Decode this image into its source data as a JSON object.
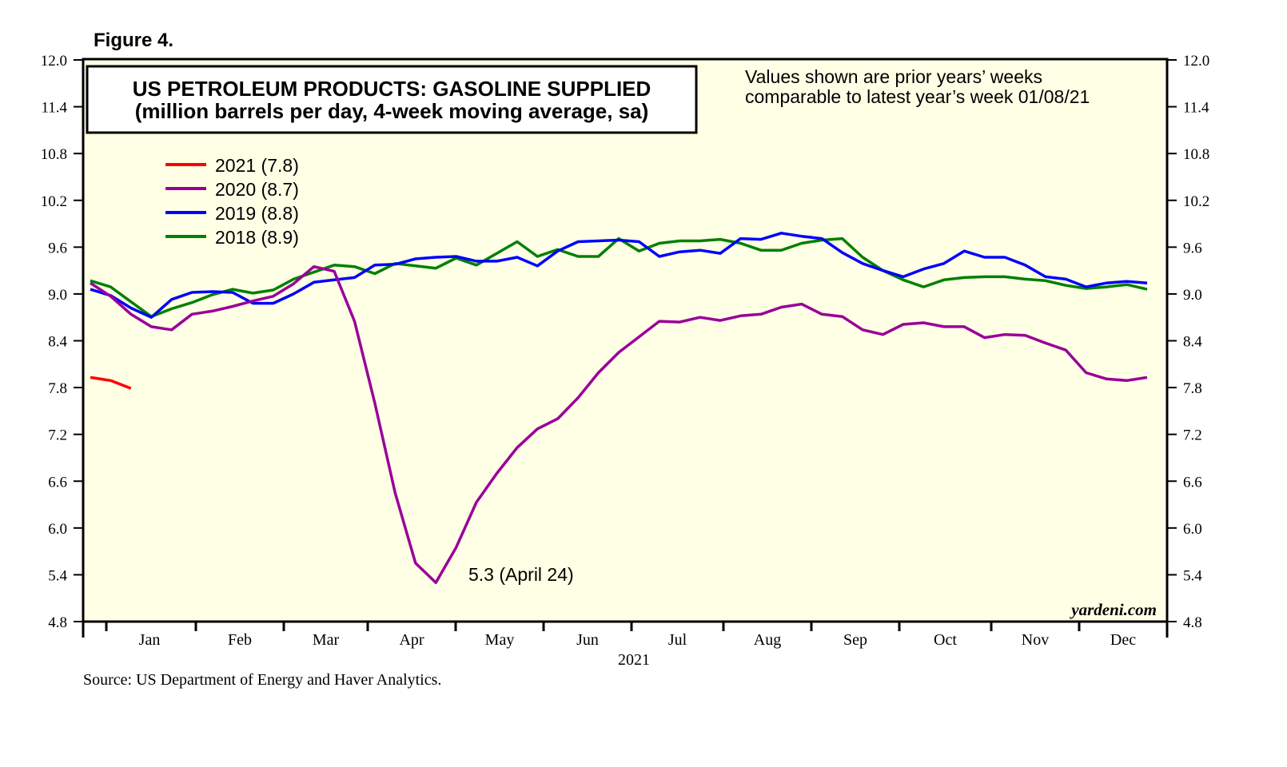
{
  "figure_label": "Figure 4.",
  "chart_data": {
    "type": "line",
    "title": "US PETROLEUM PRODUCTS: GASOLINE SUPPLIED",
    "subtitle": "(million barrels per day, 4-week moving average, sa)",
    "note_line1": "Values shown are prior years’ weeks",
    "note_line2": "comparable to latest year’s week 01/08/21",
    "annotation": "5.3 (April 24)",
    "watermark": "yardeni.com",
    "source": "Source: US Department of Energy and Haver Analytics.",
    "xlabel": "2021",
    "ylim": [
      4.8,
      12.0
    ],
    "yticks": [
      "12.0",
      "11.4",
      "10.8",
      "10.2",
      "9.6",
      "9.0",
      "8.4",
      "7.8",
      "7.2",
      "6.6",
      "6.0",
      "5.4",
      "4.8"
    ],
    "months": [
      "Jan",
      "Feb",
      "Mar",
      "Apr",
      "May",
      "Jun",
      "Jul",
      "Aug",
      "Sep",
      "Oct",
      "Nov",
      "Dec"
    ],
    "weeks_total": 52,
    "series": [
      {
        "name": "2021 (7.8)",
        "color": "#ff0000",
        "values": [
          7.93,
          7.89,
          7.79
        ]
      },
      {
        "name": "2020 (8.7)",
        "color": "#990099",
        "values": [
          9.14,
          8.97,
          8.74,
          8.58,
          8.54,
          8.74,
          8.78,
          8.84,
          8.91,
          8.97,
          9.13,
          9.35,
          9.29,
          8.65,
          7.6,
          6.45,
          5.55,
          5.3,
          5.75,
          6.33,
          6.7,
          7.03,
          7.27,
          7.4,
          7.67,
          7.99,
          8.25,
          8.45,
          8.65,
          8.64,
          8.7,
          8.66,
          8.72,
          8.74,
          8.83,
          8.87,
          8.74,
          8.71,
          8.54,
          8.48,
          8.61,
          8.63,
          8.58,
          8.58,
          8.44,
          8.48,
          8.47,
          8.37,
          8.28,
          7.99,
          7.91,
          7.89,
          7.93
        ]
      },
      {
        "name": "2019 (8.8)",
        "color": "#0000ff",
        "values": [
          9.06,
          8.98,
          8.82,
          8.7,
          8.93,
          9.02,
          9.03,
          9.02,
          8.88,
          8.88,
          9.0,
          9.15,
          9.18,
          9.21,
          9.37,
          9.38,
          9.45,
          9.47,
          9.48,
          9.42,
          9.42,
          9.47,
          9.36,
          9.55,
          9.67,
          9.68,
          9.69,
          9.67,
          9.48,
          9.54,
          9.56,
          9.52,
          9.71,
          9.7,
          9.78,
          9.74,
          9.71,
          9.53,
          9.39,
          9.3,
          9.22,
          9.32,
          9.39,
          9.55,
          9.47,
          9.47,
          9.37,
          9.22,
          9.19,
          9.09,
          9.14,
          9.16,
          9.14
        ]
      },
      {
        "name": "2018 (8.9)",
        "color": "#008000",
        "values": [
          9.17,
          9.09,
          8.9,
          8.71,
          8.81,
          8.89,
          8.99,
          9.06,
          9.01,
          9.05,
          9.19,
          9.28,
          9.37,
          9.35,
          9.26,
          9.39,
          9.36,
          9.33,
          9.46,
          9.37,
          9.52,
          9.67,
          9.48,
          9.57,
          9.48,
          9.48,
          9.71,
          9.55,
          9.65,
          9.68,
          9.68,
          9.7,
          9.65,
          9.56,
          9.56,
          9.65,
          9.69,
          9.71,
          9.47,
          9.3,
          9.18,
          9.09,
          9.18,
          9.21,
          9.22,
          9.22,
          9.19,
          9.17,
          9.11,
          9.07,
          9.09,
          9.12,
          9.06
        ]
      }
    ]
  },
  "colors": {
    "plot_bg": "#ffffe6"
  }
}
